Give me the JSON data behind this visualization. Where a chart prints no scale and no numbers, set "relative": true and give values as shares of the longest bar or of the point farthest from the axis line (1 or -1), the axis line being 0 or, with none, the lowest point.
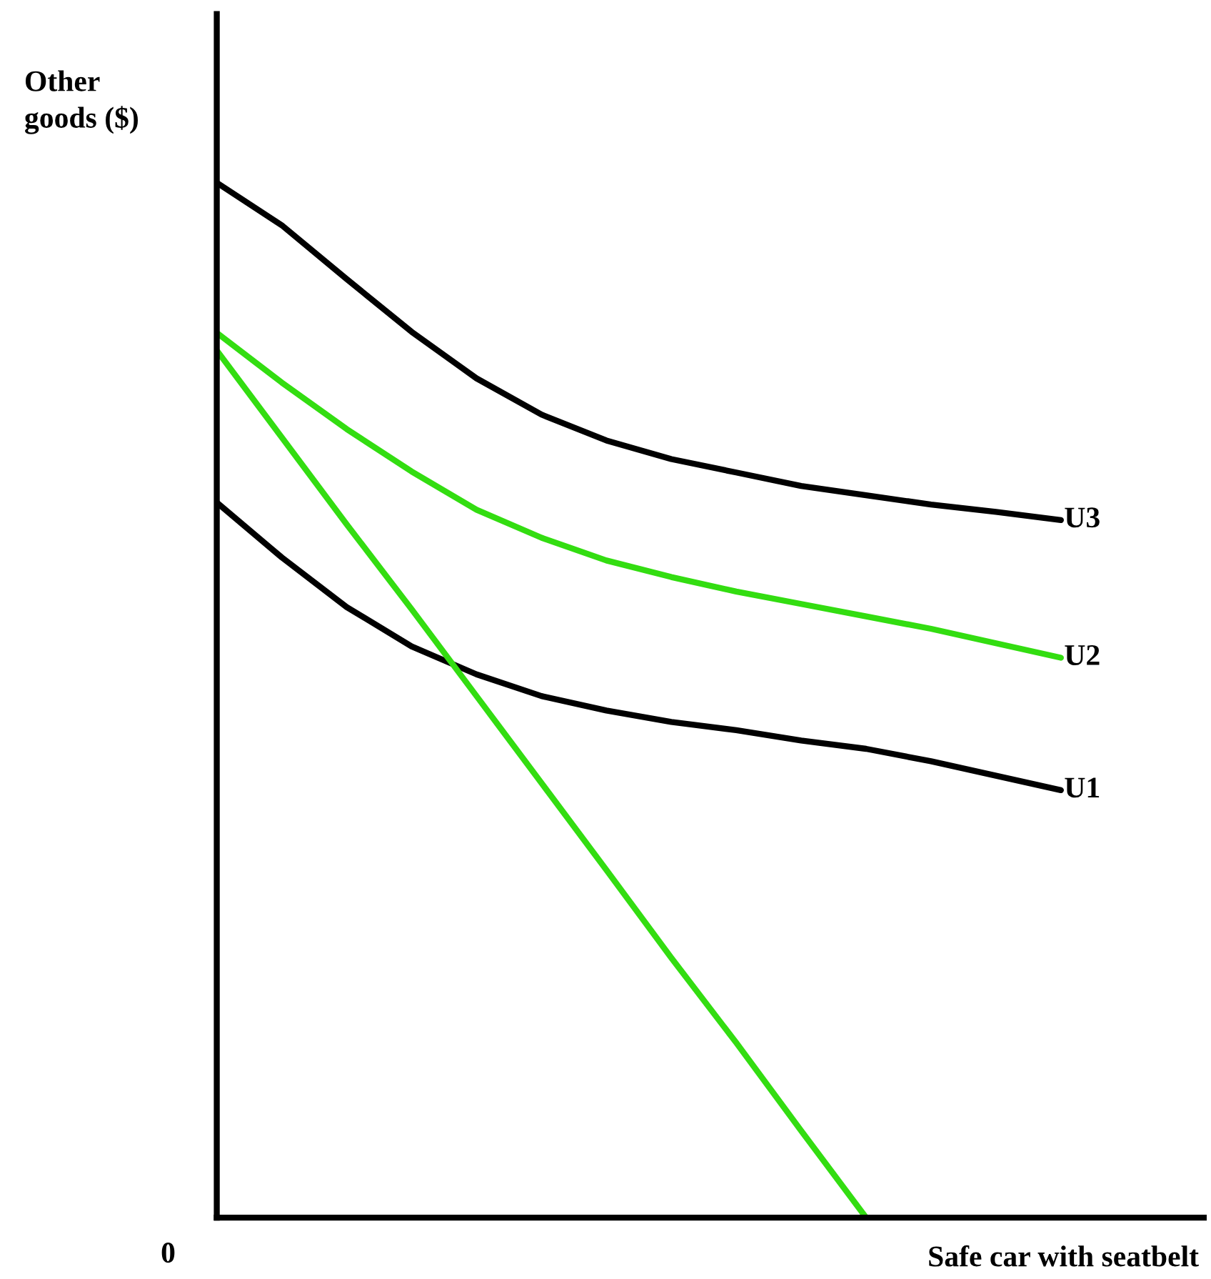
{
  "chart_data": {
    "type": "line",
    "relative": true,
    "xlabel": "Safe car with seatbelt",
    "ylabel": "Other goods ($)",
    "categories": [
      null,
      null,
      null,
      null,
      null,
      null,
      null,
      null,
      null,
      null,
      null,
      null,
      null,
      null
    ],
    "series": [
      {
        "name": "U3",
        "color": "#000000",
        "values": [
          1,
          0.959,
          0.907,
          0.856,
          0.811,
          0.776,
          0.751,
          0.733,
          0.72,
          0.707,
          0.698,
          0.689,
          0.682,
          0.674
        ]
      },
      {
        "name": "U2",
        "color": "#33dd11",
        "values": [
          0.855,
          0.807,
          0.762,
          0.721,
          0.684,
          0.657,
          0.635,
          0.619,
          0.605,
          0.593,
          0.581,
          0.569,
          0.555,
          0.541
        ]
      },
      {
        "name": "U1",
        "color": "#000000",
        "values": [
          0.691,
          0.638,
          0.59,
          0.552,
          0.525,
          0.504,
          0.49,
          0.479,
          0.471,
          0.461,
          0.453,
          0.441,
          0.427,
          0.413
        ]
      },
      {
        "color": "#33dd11",
        "values": [
          0.838,
          0.754,
          0.67,
          0.588,
          0.504,
          0.42,
          0.336,
          0.251,
          0.169,
          0.084,
          0,
          null,
          null,
          null
        ]
      }
    ],
    "annotations": [
      "0"
    ],
    "legend": false,
    "marker": "none",
    "line_style": "solid"
  }
}
